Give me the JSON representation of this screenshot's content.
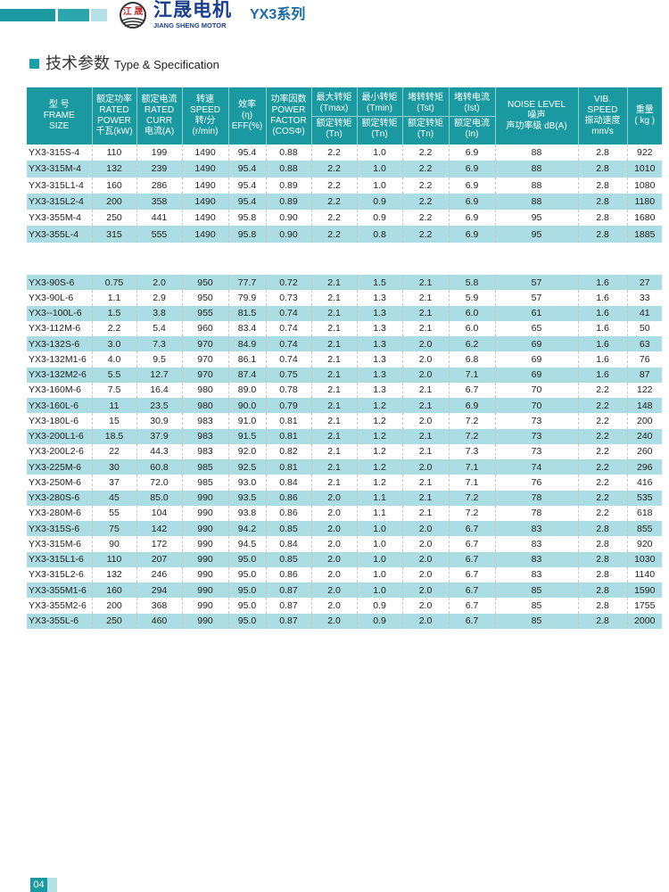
{
  "header": {
    "brand_cn": "江晟电机",
    "brand_en": "JIANG SHENG MOTOR",
    "logo_text": "江 晟",
    "series": "YX3系列",
    "colors": {
      "teal_dark": "#1a9aa0",
      "teal_mid": "#2aa6ac",
      "teal_light": "#b4e0e6",
      "brand_blue": "#1b3f8f"
    }
  },
  "section": {
    "title_cn": "技术参数",
    "title_en": "Type & Specification"
  },
  "columns": [
    {
      "lines": [
        "型 号",
        "FRAME",
        "SIZE"
      ]
    },
    {
      "lines": [
        "额定功率",
        "RATED",
        "POWER",
        "千瓦(kW)"
      ]
    },
    {
      "lines": [
        "额定电流",
        "RATED",
        "CURR",
        "电流(A)"
      ]
    },
    {
      "lines": [
        "转速",
        "SPEED",
        "转/分",
        "(r/min)"
      ]
    },
    {
      "lines": [
        "效率",
        "(η)",
        "EFF(%)"
      ]
    },
    {
      "lines": [
        "功率因数",
        "POWER",
        "FACTOR",
        "(COSΦ)"
      ]
    },
    {
      "lines": [
        "最大转矩",
        "(Tmax)"
      ],
      "sub": [
        "额定转矩",
        "(Tn)"
      ]
    },
    {
      "lines": [
        "最小转矩",
        "(Tmin)"
      ],
      "sub": [
        "额定转矩",
        "(Tn)"
      ]
    },
    {
      "lines": [
        "堵转转矩",
        "(Tst)"
      ],
      "sub": [
        "额定转矩",
        "(Tn)"
      ]
    },
    {
      "lines": [
        "堵转电流",
        "(Ist)"
      ],
      "sub": [
        "额定电流",
        "(In)"
      ]
    },
    {
      "lines": [
        "NOISE LEVEL",
        "噪声",
        "声功率级 dB(A)"
      ]
    },
    {
      "lines": [
        "VIB.",
        "SPEED",
        "振动速度",
        "mm/s"
      ]
    },
    {
      "lines": [
        "重量",
        "( kg )"
      ]
    }
  ],
  "table1": [
    [
      "YX3-315S-4",
      "110",
      "199",
      "1490",
      "95.4",
      "0.88",
      "2.2",
      "1.0",
      "2.2",
      "6.9",
      "88",
      "2.8",
      "922"
    ],
    [
      "YX3-315M-4",
      "132",
      "239",
      "1490",
      "95.4",
      "0.88",
      "2.2",
      "1.0",
      "2.2",
      "6.9",
      "88",
      "2.8",
      "1010"
    ],
    [
      "YX3-315L1-4",
      "160",
      "286",
      "1490",
      "95.4",
      "0.89",
      "2.2",
      "1.0",
      "2.2",
      "6.9",
      "88",
      "2.8",
      "1080"
    ],
    [
      "YX3-315L2-4",
      "200",
      "358",
      "1490",
      "95.4",
      "0.89",
      "2.2",
      "0.9",
      "2.2",
      "6.9",
      "88",
      "2.8",
      "1180"
    ],
    [
      "YX3-355M-4",
      "250",
      "441",
      "1490",
      "95.8",
      "0.90",
      "2.2",
      "0.9",
      "2.2",
      "6.9",
      "95",
      "2.8",
      "1680"
    ],
    [
      "YX3-355L-4",
      "315",
      "555",
      "1490",
      "95.8",
      "0.90",
      "2.2",
      "0.8",
      "2.2",
      "6.9",
      "95",
      "2.8",
      "1885"
    ]
  ],
  "table2": [
    [
      "YX3-90S-6",
      "0.75",
      "2.0",
      "950",
      "77.7",
      "0.72",
      "2.1",
      "1.5",
      "2.1",
      "5.8",
      "57",
      "1.6",
      "27"
    ],
    [
      "YX3-90L-6",
      "1.1",
      "2.9",
      "950",
      "79.9",
      "0.73",
      "2.1",
      "1.3",
      "2.1",
      "5.9",
      "57",
      "1.6",
      "33"
    ],
    [
      "YX3--100L-6",
      "1.5",
      "3.8",
      "955",
      "81.5",
      "0.74",
      "2.1",
      "1.3",
      "2.1",
      "6.0",
      "61",
      "1.6",
      "41"
    ],
    [
      "YX3-112M-6",
      "2.2",
      "5.4",
      "960",
      "83.4",
      "0.74",
      "2.1",
      "1.3",
      "2.1",
      "6.0",
      "65",
      "1.6",
      "50"
    ],
    [
      "YX3-132S-6",
      "3.0",
      "7.3",
      "970",
      "84.9",
      "0.74",
      "2.1",
      "1.3",
      "2.0",
      "6.2",
      "69",
      "1.6",
      "63"
    ],
    [
      "YX3-132M1-6",
      "4.0",
      "9.5",
      "970",
      "86.1",
      "0.74",
      "2.1",
      "1.3",
      "2.0",
      "6.8",
      "69",
      "1.6",
      "76"
    ],
    [
      "YX3-132M2-6",
      "5.5",
      "12.7",
      "970",
      "87.4",
      "0.75",
      "2.1",
      "1.3",
      "2.0",
      "7.1",
      "69",
      "1.6",
      "87"
    ],
    [
      "YX3-160M-6",
      "7.5",
      "16.4",
      "980",
      "89.0",
      "0.78",
      "2.1",
      "1.3",
      "2.1",
      "6.7",
      "70",
      "2.2",
      "122"
    ],
    [
      "YX3-160L-6",
      "11",
      "23.5",
      "980",
      "90.0",
      "0.79",
      "2.1",
      "1.2",
      "2.1",
      "6.9",
      "70",
      "2.2",
      "148"
    ],
    [
      "YX3-180L-6",
      "15",
      "30.9",
      "983",
      "91.0",
      "0.81",
      "2.1",
      "1.2",
      "2.0",
      "7.2",
      "73",
      "2.2",
      "200"
    ],
    [
      "YX3-200L1-6",
      "18.5",
      "37.9",
      "983",
      "91.5",
      "0.81",
      "2.1",
      "1.2",
      "2.1",
      "7.2",
      "73",
      "2.2",
      "240"
    ],
    [
      "YX3-200L2-6",
      "22",
      "44.3",
      "983",
      "92.0",
      "0.82",
      "2.1",
      "1.2",
      "2.1",
      "7.3",
      "73",
      "2.2",
      "260"
    ],
    [
      "YX3-225M-6",
      "30",
      "60.8",
      "985",
      "92.5",
      "0.81",
      "2.1",
      "1.2",
      "2.0",
      "7.1",
      "74",
      "2.2",
      "296"
    ],
    [
      "YX3-250M-6",
      "37",
      "72.0",
      "985",
      "93.0",
      "0.84",
      "2.1",
      "1.2",
      "2.1",
      "7.1",
      "76",
      "2.2",
      "416"
    ],
    [
      "YX3-280S-6",
      "45",
      "85.0",
      "990",
      "93.5",
      "0.86",
      "2.0",
      "1.1",
      "2.1",
      "7.2",
      "78",
      "2.2",
      "535"
    ],
    [
      "YX3-280M-6",
      "55",
      "104",
      "990",
      "93.8",
      "0.86",
      "2.0",
      "1.1",
      "2.1",
      "7.2",
      "78",
      "2.2",
      "618"
    ],
    [
      "YX3-315S-6",
      "75",
      "142",
      "990",
      "94.2",
      "0.85",
      "2.0",
      "1.0",
      "2.0",
      "6.7",
      "83",
      "2.8",
      "855"
    ],
    [
      "YX3-315M-6",
      "90",
      "172",
      "990",
      "94.5",
      "0.84",
      "2.0",
      "1.0",
      "2.0",
      "6.7",
      "83",
      "2.8",
      "920"
    ],
    [
      "YX3-315L1-6",
      "110",
      "207",
      "990",
      "95.0",
      "0.85",
      "2.0",
      "1.0",
      "2.0",
      "6.7",
      "83",
      "2.8",
      "1030"
    ],
    [
      "YX3-315L2-6",
      "132",
      "246",
      "990",
      "95.0",
      "0.86",
      "2.0",
      "1.0",
      "2.0",
      "6.7",
      "83",
      "2.8",
      "1140"
    ],
    [
      "YX3-355M1-6",
      "160",
      "294",
      "990",
      "95.0",
      "0.87",
      "2.0",
      "1.0",
      "2.0",
      "6.7",
      "85",
      "2.8",
      "1590"
    ],
    [
      "YX3-355M2-6",
      "200",
      "368",
      "990",
      "95.0",
      "0.87",
      "2.0",
      "0.9",
      "2.0",
      "6.7",
      "85",
      "2.8",
      "1755"
    ],
    [
      "YX3-355L-6",
      "250",
      "460",
      "990",
      "95.0",
      "0.87",
      "2.0",
      "0.9",
      "2.0",
      "6.7",
      "85",
      "2.8",
      "2000"
    ]
  ],
  "footer": {
    "page_number": "04"
  }
}
